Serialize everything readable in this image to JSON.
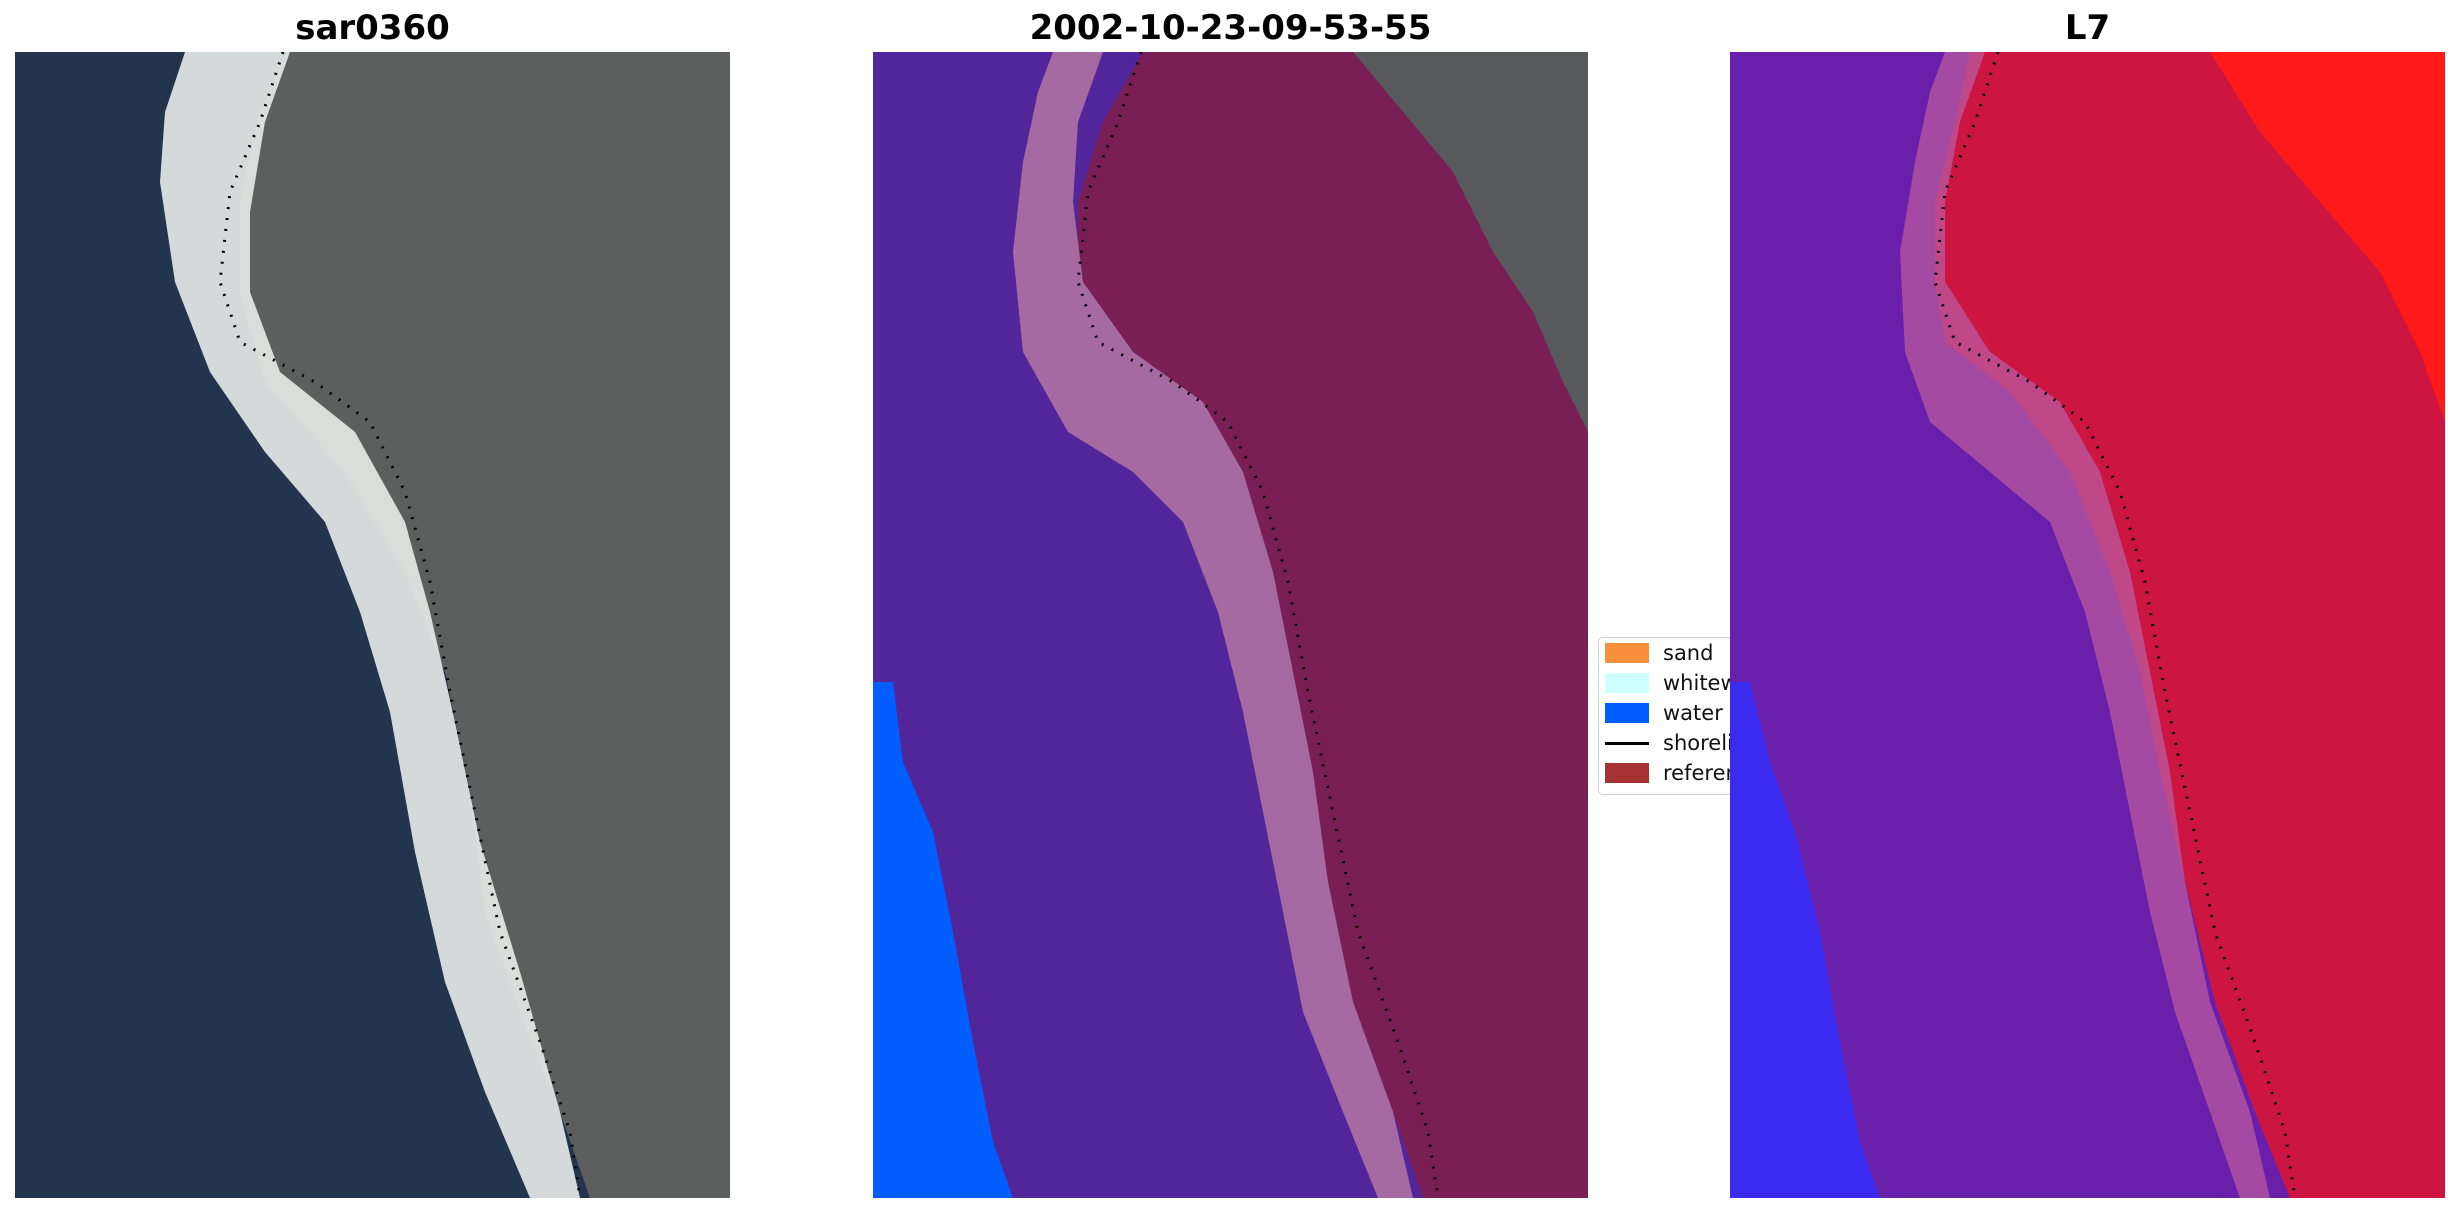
{
  "titles": {
    "panel1": "sar0360",
    "panel2": "2002-10-23-09-53-55",
    "panel3": "L7"
  },
  "legend": {
    "items": [
      {
        "label": "sand",
        "color": "#f88f3b",
        "kind": "patch"
      },
      {
        "label": "whitewater",
        "color": "#cfffff",
        "kind": "patch"
      },
      {
        "label": "water",
        "color": "#005eff",
        "kind": "patch"
      },
      {
        "label": "shoreline",
        "color": "#000000",
        "kind": "line"
      },
      {
        "label": "reference",
        "color": "#a63232",
        "kind": "patch"
      }
    ]
  },
  "colors": {
    "sea": "#23344f",
    "beach": "#e8ece9",
    "land": "#5d5f5f",
    "classified_sea": "#53259a",
    "classified_water": "#005eff",
    "classified_land_overlay": "#7a1f55",
    "classified_bright": "#a66aa2",
    "classified_land_plain": "#58595c",
    "index_sea": "#6a1faa",
    "index_land": "#cc1540",
    "index_corner": "#ff1a1a",
    "index_water": "#3a2af0",
    "shoreline_dots": "#000000"
  }
}
